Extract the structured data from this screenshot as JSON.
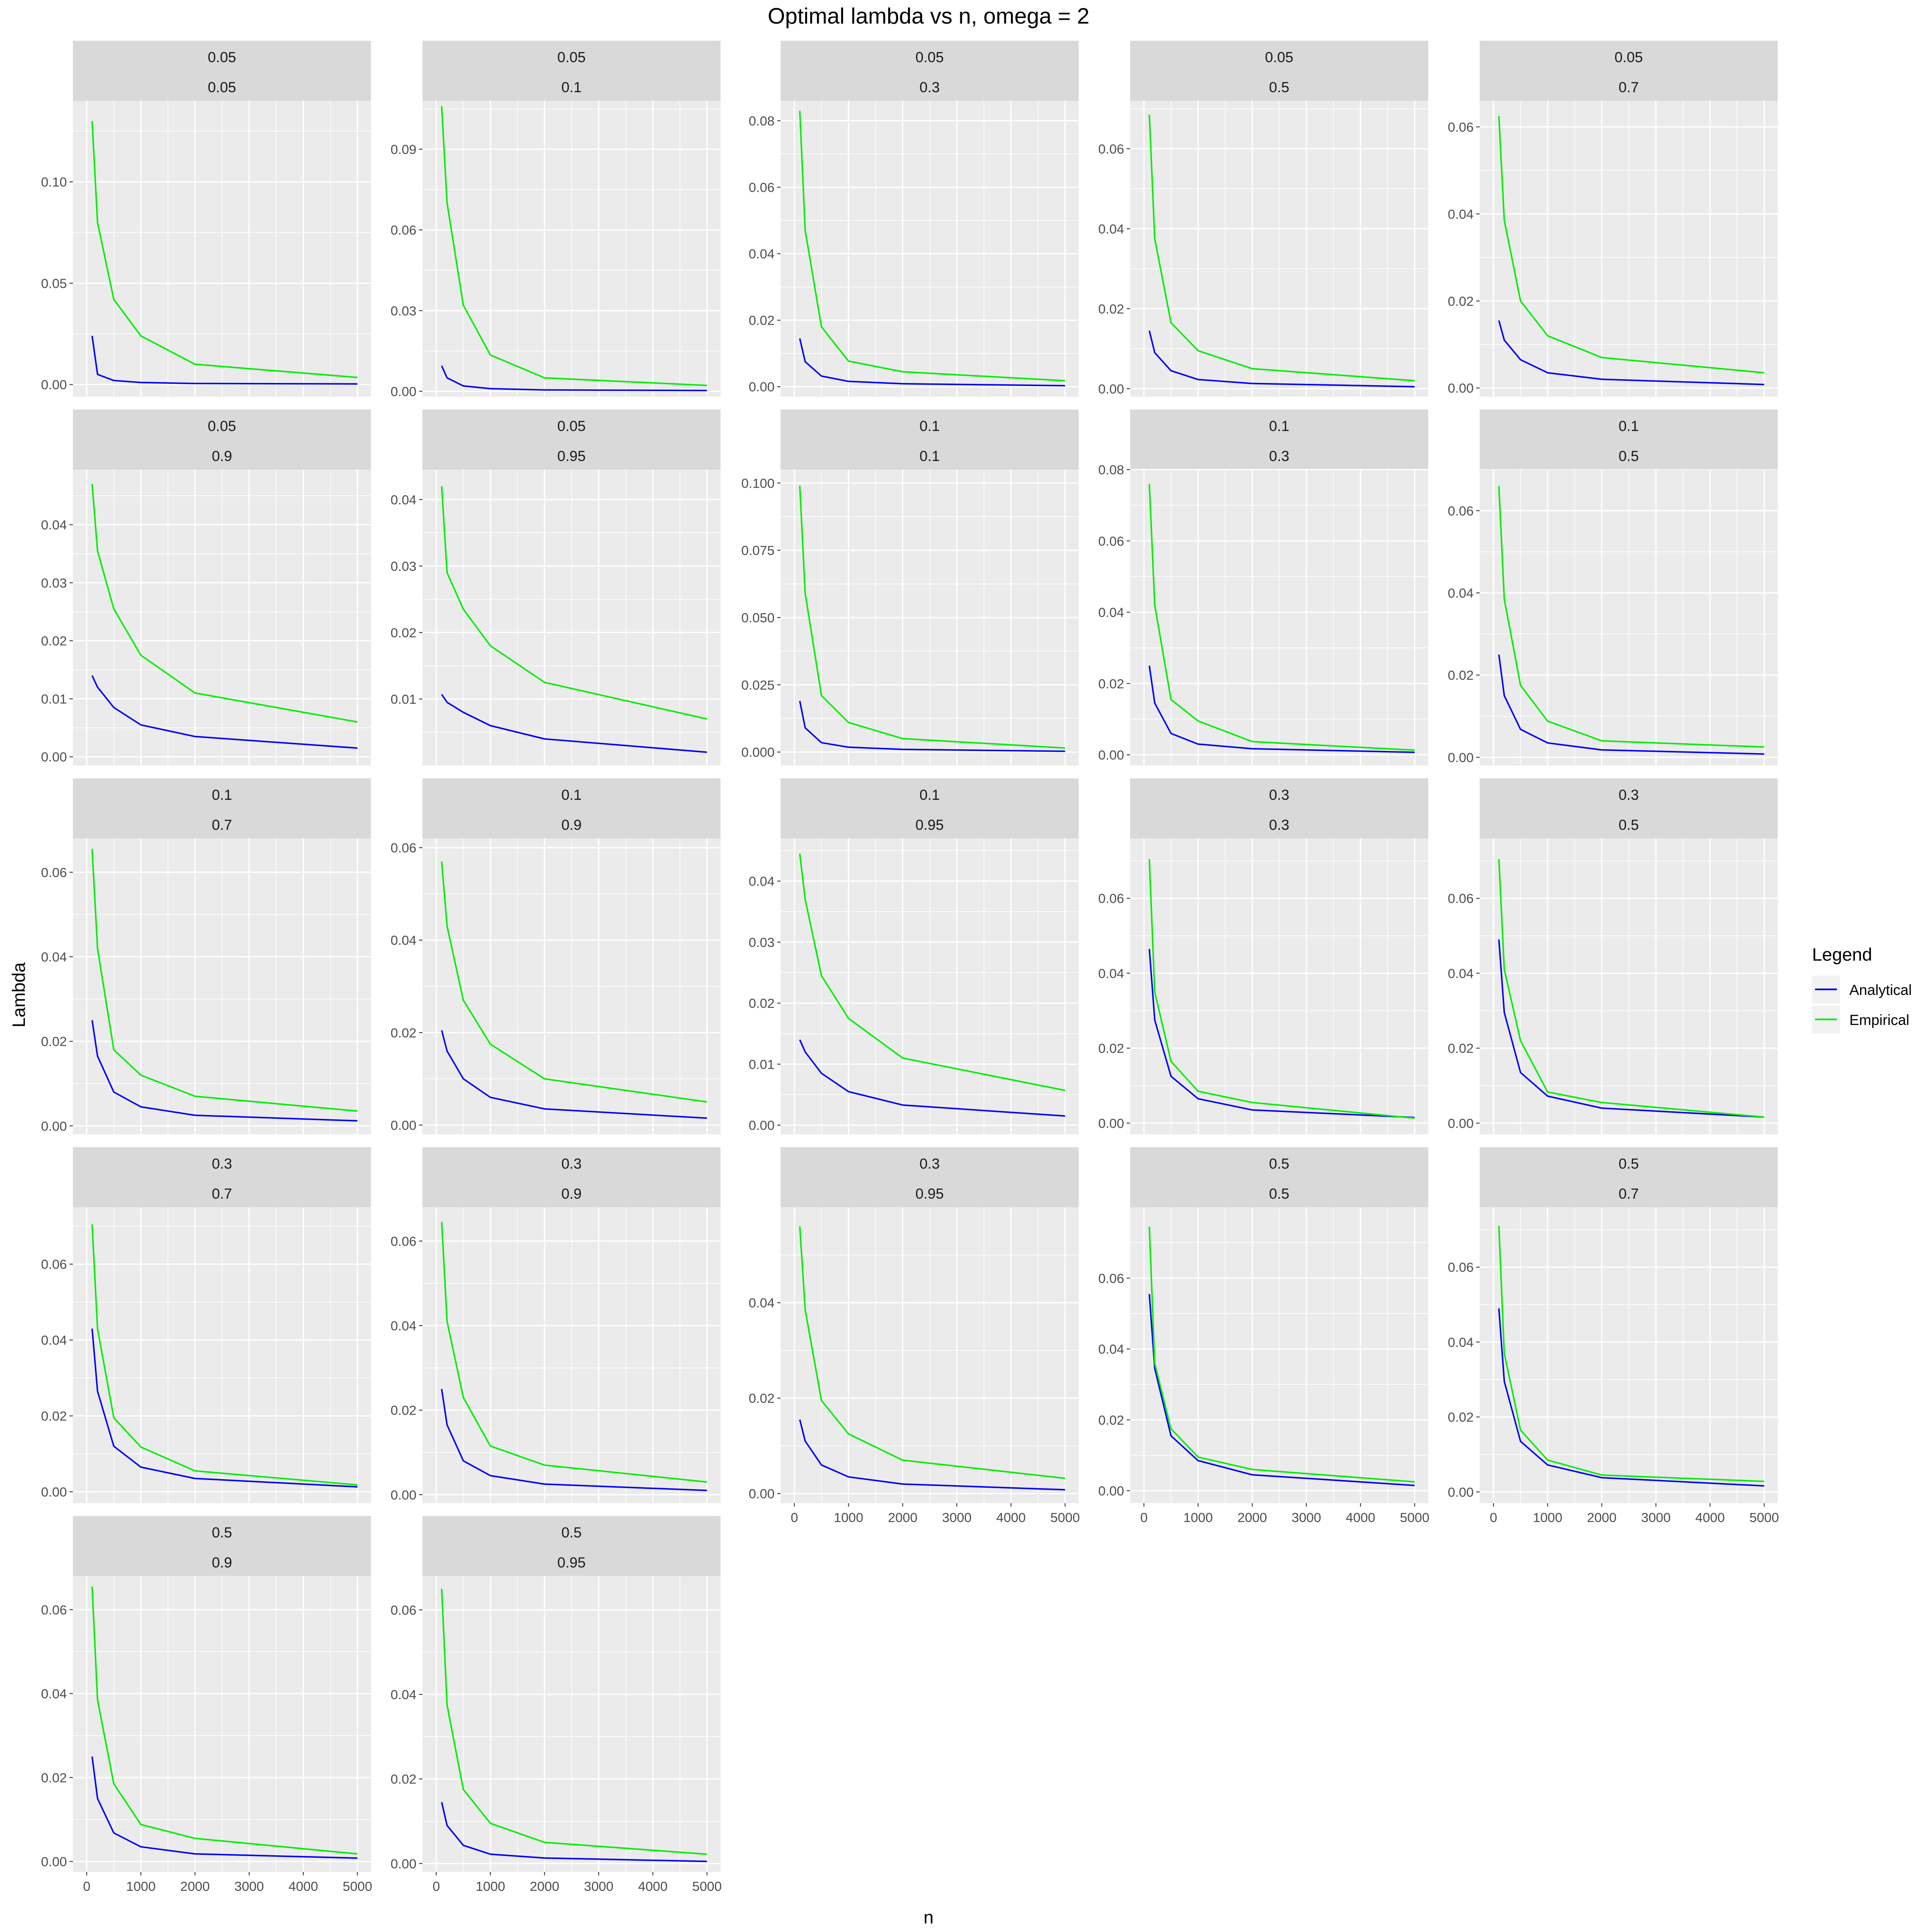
{
  "title": "Optimal lambda vs n, omega =  2",
  "xlabel": "n",
  "ylabel": "Lambda",
  "legend": {
    "title": "Legend",
    "placement": "right",
    "items": [
      {
        "label": "Analytical",
        "color": "#0000ff"
      },
      {
        "label": "Empirical",
        "color": "#00ee00"
      }
    ]
  },
  "colors": {
    "panel_bg": "#ebebeb",
    "strip_bg": "#d9d9d9",
    "grid": "#ffffff",
    "axis_text": "#4d4d4d"
  },
  "chart_data": {
    "type": "line",
    "x": [
      100,
      200,
      500,
      1000,
      2000,
      5000
    ],
    "xlim": [
      0,
      5000
    ],
    "xticks": [
      0,
      1000,
      2000,
      3000,
      4000,
      5000
    ],
    "x_tick_rows": [
      3,
      4
    ],
    "grid": true,
    "panels": [
      {
        "strip": [
          "0.05",
          "0.05"
        ],
        "ylim": [
          -0.006,
          0.14
        ],
        "yticks": [
          0,
          0.05,
          0.1
        ],
        "ytick_labels": [
          "0.00",
          "0.05",
          "0.10"
        ],
        "series": [
          {
            "name": "Analytical",
            "values": [
              0.024,
              0.005,
              0.002,
              0.001,
              0.0005,
              0.0003
            ]
          },
          {
            "name": "Empirical",
            "values": [
              0.13,
              0.08,
              0.042,
              0.024,
              0.01,
              0.0035
            ]
          }
        ]
      },
      {
        "strip": [
          "0.05",
          "0.1"
        ],
        "ylim": [
          -0.002,
          0.108
        ],
        "yticks": [
          0,
          0.03,
          0.06,
          0.09
        ],
        "ytick_labels": [
          "0.00",
          "0.03",
          "0.06",
          "0.09"
        ],
        "series": [
          {
            "name": "Analytical",
            "values": [
              0.0095,
              0.005,
              0.002,
              0.001,
              0.0005,
              0.0003
            ]
          },
          {
            "name": "Empirical",
            "values": [
              0.106,
              0.07,
              0.032,
              0.0135,
              0.005,
              0.0022
            ]
          }
        ]
      },
      {
        "strip": [
          "0.05",
          "0.3"
        ],
        "ylim": [
          -0.003,
          0.086
        ],
        "yticks": [
          0,
          0.02,
          0.04,
          0.06,
          0.08
        ],
        "ytick_labels": [
          "0.00",
          "0.02",
          "0.04",
          "0.06",
          "0.08"
        ],
        "series": [
          {
            "name": "Analytical",
            "values": [
              0.0145,
              0.0075,
              0.0032,
              0.0016,
              0.0009,
              0.0003
            ]
          },
          {
            "name": "Empirical",
            "values": [
              0.083,
              0.047,
              0.018,
              0.0077,
              0.0045,
              0.0018
            ]
          }
        ]
      },
      {
        "strip": [
          "0.05",
          "0.5"
        ],
        "ylim": [
          -0.002,
          0.072
        ],
        "yticks": [
          0,
          0.02,
          0.04,
          0.06
        ],
        "ytick_labels": [
          "0.00",
          "0.02",
          "0.04",
          "0.06"
        ],
        "series": [
          {
            "name": "Analytical",
            "values": [
              0.0145,
              0.009,
              0.0045,
              0.0023,
              0.0013,
              0.0005
            ]
          },
          {
            "name": "Empirical",
            "values": [
              0.0685,
              0.0375,
              0.0165,
              0.0095,
              0.005,
              0.002
            ]
          }
        ]
      },
      {
        "strip": [
          "0.05",
          "0.7"
        ],
        "ylim": [
          -0.002,
          0.066
        ],
        "yticks": [
          0,
          0.02,
          0.04,
          0.06
        ],
        "ytick_labels": [
          "0.00",
          "0.02",
          "0.04",
          "0.06"
        ],
        "series": [
          {
            "name": "Analytical",
            "values": [
              0.0155,
              0.011,
              0.0065,
              0.0035,
              0.002,
              0.0008
            ]
          },
          {
            "name": "Empirical",
            "values": [
              0.0625,
              0.0385,
              0.02,
              0.012,
              0.007,
              0.0035
            ]
          }
        ]
      },
      {
        "strip": [
          "0.05",
          "0.9"
        ],
        "ylim": [
          -0.0015,
          0.0495
        ],
        "yticks": [
          0,
          0.01,
          0.02,
          0.03,
          0.04
        ],
        "ytick_labels": [
          "0.00",
          "0.01",
          "0.02",
          "0.03",
          "0.04"
        ],
        "series": [
          {
            "name": "Analytical",
            "values": [
              0.014,
              0.012,
              0.0085,
              0.0055,
              0.0035,
              0.0015
            ]
          },
          {
            "name": "Empirical",
            "values": [
              0.047,
              0.0355,
              0.0255,
              0.0175,
              0.011,
              0.006
            ]
          }
        ]
      },
      {
        "strip": [
          "0.05",
          "0.95"
        ],
        "ylim": [
          0,
          0.0445
        ],
        "yticks": [
          0.01,
          0.02,
          0.03,
          0.04
        ],
        "ytick_labels": [
          "0.01",
          "0.02",
          "0.03",
          "0.04"
        ],
        "series": [
          {
            "name": "Analytical",
            "values": [
              0.0107,
              0.0095,
              0.008,
              0.006,
              0.004,
              0.002
            ]
          },
          {
            "name": "Empirical",
            "values": [
              0.042,
              0.029,
              0.0235,
              0.018,
              0.0125,
              0.007
            ]
          }
        ]
      },
      {
        "strip": [
          "0.1",
          "0.1"
        ],
        "ylim": [
          -0.005,
          0.105
        ],
        "yticks": [
          0,
          0.025,
          0.05,
          0.075,
          0.1
        ],
        "ytick_labels": [
          "0.000",
          "0.025",
          "0.050",
          "0.075",
          "0.100"
        ],
        "series": [
          {
            "name": "Analytical",
            "values": [
              0.019,
              0.009,
              0.0035,
              0.0018,
              0.001,
              0.0003
            ]
          },
          {
            "name": "Empirical",
            "values": [
              0.099,
              0.059,
              0.021,
              0.011,
              0.005,
              0.0015
            ]
          }
        ]
      },
      {
        "strip": [
          "0.1",
          "0.3"
        ],
        "ylim": [
          -0.003,
          0.08
        ],
        "yticks": [
          0,
          0.02,
          0.04,
          0.06,
          0.08
        ],
        "ytick_labels": [
          "0.00",
          "0.02",
          "0.04",
          "0.06",
          "0.08"
        ],
        "series": [
          {
            "name": "Analytical",
            "values": [
              0.025,
              0.0145,
              0.006,
              0.003,
              0.0017,
              0.0007
            ]
          },
          {
            "name": "Empirical",
            "values": [
              0.076,
              0.042,
              0.0155,
              0.0095,
              0.0037,
              0.0013
            ]
          }
        ]
      },
      {
        "strip": [
          "0.1",
          "0.5"
        ],
        "ylim": [
          -0.002,
          0.07
        ],
        "yticks": [
          0,
          0.02,
          0.04,
          0.06
        ],
        "ytick_labels": [
          "0.00",
          "0.02",
          "0.04",
          "0.06"
        ],
        "series": [
          {
            "name": "Analytical",
            "values": [
              0.025,
              0.015,
              0.0068,
              0.0035,
              0.0018,
              0.0008
            ]
          },
          {
            "name": "Empirical",
            "values": [
              0.066,
              0.0385,
              0.0175,
              0.0088,
              0.004,
              0.0025
            ]
          }
        ]
      },
      {
        "strip": [
          "0.1",
          "0.7"
        ],
        "ylim": [
          -0.002,
          0.068
        ],
        "yticks": [
          0,
          0.02,
          0.04,
          0.06
        ],
        "ytick_labels": [
          "0.00",
          "0.02",
          "0.04",
          "0.06"
        ],
        "series": [
          {
            "name": "Analytical",
            "values": [
              0.025,
              0.0165,
              0.008,
              0.0045,
              0.0025,
              0.0012
            ]
          },
          {
            "name": "Empirical",
            "values": [
              0.0655,
              0.042,
              0.018,
              0.012,
              0.007,
              0.0035
            ]
          }
        ]
      },
      {
        "strip": [
          "0.1",
          "0.9"
        ],
        "ylim": [
          -0.002,
          0.062
        ],
        "yticks": [
          0,
          0.02,
          0.04,
          0.06
        ],
        "ytick_labels": [
          "0.00",
          "0.02",
          "0.04",
          "0.06"
        ],
        "series": [
          {
            "name": "Analytical",
            "values": [
              0.0205,
              0.016,
              0.01,
              0.006,
              0.0035,
              0.0015
            ]
          },
          {
            "name": "Empirical",
            "values": [
              0.057,
              0.043,
              0.027,
              0.0175,
              0.01,
              0.005
            ]
          }
        ]
      },
      {
        "strip": [
          "0.1",
          "0.95"
        ],
        "ylim": [
          -0.0015,
          0.047
        ],
        "yticks": [
          0,
          0.01,
          0.02,
          0.03,
          0.04
        ],
        "ytick_labels": [
          "0.00",
          "0.01",
          "0.02",
          "0.03",
          "0.04"
        ],
        "series": [
          {
            "name": "Analytical",
            "values": [
              0.014,
              0.012,
              0.0085,
              0.0055,
              0.0033,
              0.0015
            ]
          },
          {
            "name": "Empirical",
            "values": [
              0.0445,
              0.037,
              0.0245,
              0.0175,
              0.011,
              0.0057
            ]
          }
        ]
      },
      {
        "strip": [
          "0.3",
          "0.3"
        ],
        "ylim": [
          -0.003,
          0.076
        ],
        "yticks": [
          0,
          0.02,
          0.04,
          0.06
        ],
        "ytick_labels": [
          "0.00",
          "0.02",
          "0.04",
          "0.06"
        ],
        "series": [
          {
            "name": "Analytical",
            "values": [
              0.0465,
              0.0275,
              0.0125,
              0.0065,
              0.0035,
              0.0015
            ]
          },
          {
            "name": "Empirical",
            "values": [
              0.0705,
              0.035,
              0.0165,
              0.0085,
              0.0055,
              0.0013
            ]
          }
        ]
      },
      {
        "strip": [
          "0.3",
          "0.5"
        ],
        "ylim": [
          -0.003,
          0.076
        ],
        "yticks": [
          0,
          0.02,
          0.04,
          0.06
        ],
        "ytick_labels": [
          "0.00",
          "0.02",
          "0.04",
          "0.06"
        ],
        "series": [
          {
            "name": "Analytical",
            "values": [
              0.049,
              0.0295,
              0.0135,
              0.0072,
              0.004,
              0.0016
            ]
          },
          {
            "name": "Empirical",
            "values": [
              0.0705,
              0.041,
              0.022,
              0.0083,
              0.0055,
              0.0016
            ]
          }
        ]
      },
      {
        "strip": [
          "0.3",
          "0.7"
        ],
        "ylim": [
          -0.003,
          0.075
        ],
        "yticks": [
          0,
          0.02,
          0.04,
          0.06
        ],
        "ytick_labels": [
          "0.00",
          "0.02",
          "0.04",
          "0.06"
        ],
        "series": [
          {
            "name": "Analytical",
            "values": [
              0.043,
              0.0265,
              0.012,
              0.0065,
              0.0035,
              0.0013
            ]
          },
          {
            "name": "Empirical",
            "values": [
              0.0705,
              0.043,
              0.0195,
              0.0118,
              0.0055,
              0.0018
            ]
          }
        ]
      },
      {
        "strip": [
          "0.3",
          "0.9"
        ],
        "ylim": [
          -0.002,
          0.068
        ],
        "yticks": [
          0,
          0.02,
          0.04,
          0.06
        ],
        "ytick_labels": [
          "0.00",
          "0.02",
          "0.04",
          "0.06"
        ],
        "series": [
          {
            "name": "Analytical",
            "values": [
              0.025,
              0.0165,
              0.008,
              0.0045,
              0.0025,
              0.001
            ]
          },
          {
            "name": "Empirical",
            "values": [
              0.0645,
              0.041,
              0.023,
              0.0115,
              0.007,
              0.003
            ]
          }
        ]
      },
      {
        "strip": [
          "0.3",
          "0.95"
        ],
        "ylim": [
          -0.002,
          0.06
        ],
        "yticks": [
          0,
          0.02,
          0.04
        ],
        "ytick_labels": [
          "0.00",
          "0.02",
          "0.04"
        ],
        "series": [
          {
            "name": "Analytical",
            "values": [
              0.0155,
              0.011,
              0.006,
              0.0035,
              0.002,
              0.0008
            ]
          },
          {
            "name": "Empirical",
            "values": [
              0.056,
              0.0385,
              0.0195,
              0.0125,
              0.007,
              0.0032
            ]
          }
        ]
      },
      {
        "strip": [
          "0.5",
          "0.5"
        ],
        "ylim": [
          -0.0035,
          0.08
        ],
        "yticks": [
          0,
          0.02,
          0.04,
          0.06
        ],
        "ytick_labels": [
          "0.00",
          "0.02",
          "0.04",
          "0.06"
        ],
        "series": [
          {
            "name": "Analytical",
            "values": [
              0.0555,
              0.0345,
              0.0155,
              0.0085,
              0.0045,
              0.0015
            ]
          },
          {
            "name": "Empirical",
            "values": [
              0.0745,
              0.036,
              0.0175,
              0.0095,
              0.006,
              0.0025
            ]
          }
        ]
      },
      {
        "strip": [
          "0.5",
          "0.7"
        ],
        "ylim": [
          -0.003,
          0.076
        ],
        "yticks": [
          0,
          0.02,
          0.04,
          0.06
        ],
        "ytick_labels": [
          "0.00",
          "0.02",
          "0.04",
          "0.06"
        ],
        "series": [
          {
            "name": "Analytical",
            "values": [
              0.049,
              0.0295,
              0.0135,
              0.0072,
              0.0038,
              0.0016
            ]
          },
          {
            "name": "Empirical",
            "values": [
              0.071,
              0.037,
              0.0165,
              0.0085,
              0.0045,
              0.0028
            ]
          }
        ]
      },
      {
        "strip": [
          "0.5",
          "0.9"
        ],
        "ylim": [
          -0.0025,
          0.068
        ],
        "yticks": [
          0,
          0.02,
          0.04,
          0.06
        ],
        "ytick_labels": [
          "0.00",
          "0.02",
          "0.04",
          "0.06"
        ],
        "series": [
          {
            "name": "Analytical",
            "values": [
              0.025,
              0.015,
              0.0068,
              0.0035,
              0.0018,
              0.0008
            ]
          },
          {
            "name": "Empirical",
            "values": [
              0.0655,
              0.0385,
              0.0185,
              0.0088,
              0.0055,
              0.0018
            ]
          }
        ]
      },
      {
        "strip": [
          "0.5",
          "0.95"
        ],
        "ylim": [
          -0.002,
          0.068
        ],
        "yticks": [
          0,
          0.02,
          0.04,
          0.06
        ],
        "ytick_labels": [
          "0.00",
          "0.02",
          "0.04",
          "0.06"
        ],
        "series": [
          {
            "name": "Analytical",
            "values": [
              0.0145,
              0.009,
              0.0043,
              0.0022,
              0.0013,
              0.0005
            ]
          },
          {
            "name": "Empirical",
            "values": [
              0.065,
              0.0375,
              0.0175,
              0.0095,
              0.005,
              0.0022
            ]
          }
        ]
      }
    ]
  }
}
